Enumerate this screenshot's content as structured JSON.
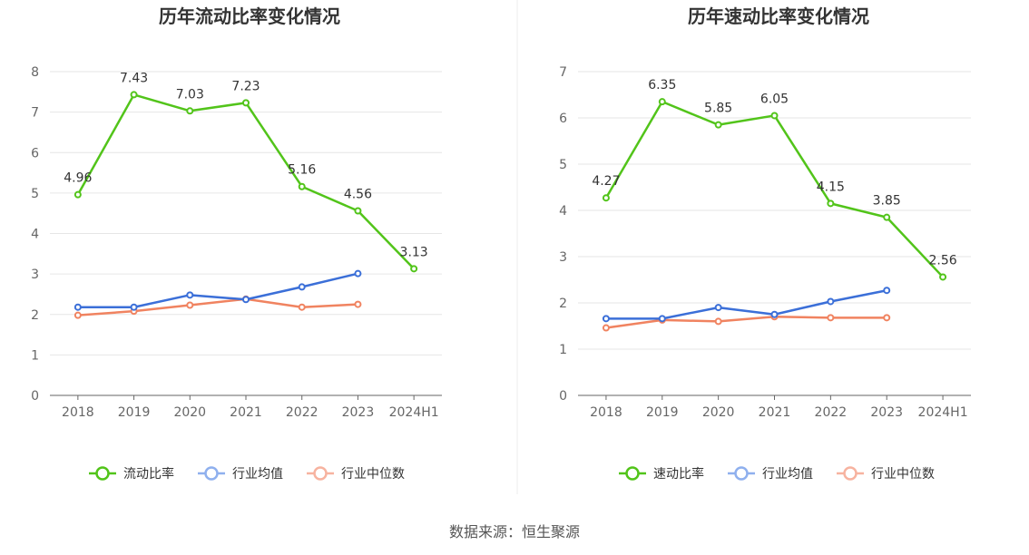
{
  "source_text": "数据来源：恒生聚源",
  "colors": {
    "main": "#52c41a",
    "industry_avg": "#3b6fd8",
    "industry_median": "#f08360",
    "grid": "#e6e6e6",
    "axis": "#666666"
  },
  "chart_data": [
    {
      "type": "line",
      "title": "历年流动比率变化情况",
      "categories": [
        "2018",
        "2019",
        "2020",
        "2021",
        "2022",
        "2023",
        "2024H1"
      ],
      "ylim": [
        0,
        8
      ],
      "yticks": [
        "0",
        "1",
        "2",
        "3",
        "4",
        "5",
        "6",
        "7",
        "8"
      ],
      "grid": true,
      "legend": "bottom",
      "series": [
        {
          "name": "流动比率",
          "values": [
            4.96,
            7.43,
            7.03,
            7.23,
            5.16,
            4.56,
            3.13
          ],
          "labels": [
            "4.96",
            "7.43",
            "7.03",
            "7.23",
            "5.16",
            "4.56",
            "3.13"
          ]
        },
        {
          "name": "行业均值",
          "values": [
            2.18,
            2.18,
            2.48,
            2.37,
            2.68,
            3.01,
            null
          ]
        },
        {
          "name": "行业中位数",
          "values": [
            1.98,
            2.08,
            2.23,
            2.38,
            2.18,
            2.25,
            null
          ]
        }
      ]
    },
    {
      "type": "line",
      "title": "历年速动比率变化情况",
      "categories": [
        "2018",
        "2019",
        "2020",
        "2021",
        "2022",
        "2023",
        "2024H1"
      ],
      "ylim": [
        0,
        7
      ],
      "yticks": [
        "0",
        "1",
        "2",
        "3",
        "4",
        "5",
        "6",
        "7"
      ],
      "grid": true,
      "legend": "bottom",
      "series": [
        {
          "name": "速动比率",
          "values": [
            4.27,
            6.35,
            5.85,
            6.05,
            4.15,
            3.85,
            2.56
          ],
          "labels": [
            "4.27",
            "6.35",
            "5.85",
            "6.05",
            "4.15",
            "3.85",
            "2.56"
          ]
        },
        {
          "name": "行业均值",
          "values": [
            1.66,
            1.66,
            1.9,
            1.75,
            2.03,
            2.27,
            null
          ]
        },
        {
          "name": "行业中位数",
          "values": [
            1.46,
            1.63,
            1.6,
            1.7,
            1.68,
            1.68,
            null
          ]
        }
      ]
    }
  ]
}
